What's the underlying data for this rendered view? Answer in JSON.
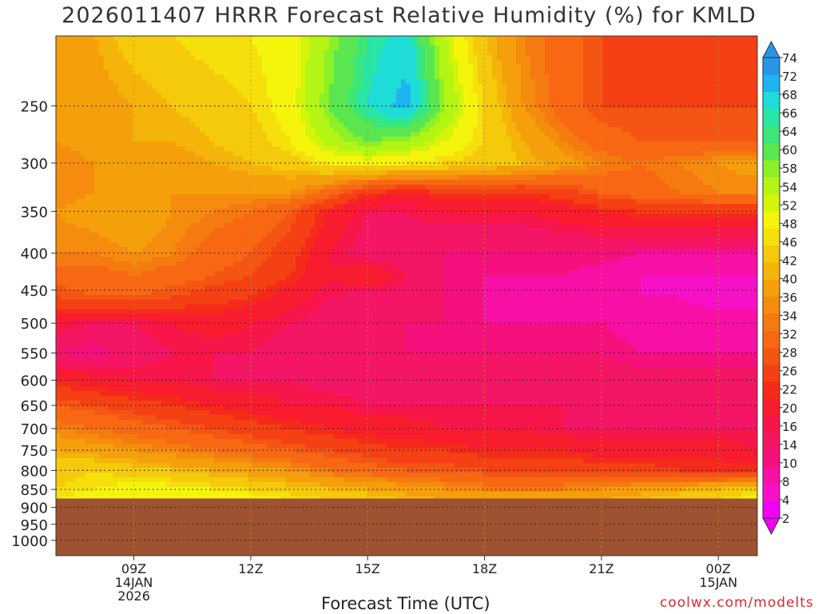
{
  "chart_data": {
    "type": "heatmap",
    "title": "2026011407 HRRR Forecast Relative Humidity (%) for KMLD",
    "xlabel": "Forecast Time (UTC)",
    "credit": "coolwx.com/modelts",
    "x_range_hours": [
      7,
      25
    ],
    "x_ticks": [
      {
        "hour": 9,
        "lines": [
          "09Z",
          "14JAN",
          "2026"
        ]
      },
      {
        "hour": 12,
        "lines": [
          "12Z"
        ]
      },
      {
        "hour": 15,
        "lines": [
          "15Z"
        ]
      },
      {
        "hour": 18,
        "lines": [
          "18Z"
        ]
      },
      {
        "hour": 21,
        "lines": [
          "21Z"
        ]
      },
      {
        "hour": 24,
        "lines": [
          "00Z",
          "15JAN"
        ]
      }
    ],
    "y_ticks_hpa": [
      250,
      300,
      350,
      400,
      450,
      500,
      550,
      600,
      650,
      700,
      750,
      800,
      850,
      900,
      950,
      1000
    ],
    "y_range_hpa": [
      1050,
      200
    ],
    "y_scale": "log",
    "ground_level_hpa": 875,
    "ground_color": "#9e5231",
    "colorbar_levels": [
      2,
      4,
      8,
      10,
      14,
      16,
      20,
      22,
      26,
      28,
      32,
      34,
      36,
      40,
      42,
      46,
      48,
      52,
      54,
      58,
      60,
      64,
      66,
      68,
      72,
      74
    ],
    "colorbar_colors": [
      "#f000f5",
      "#f810c8",
      "#f80fa5",
      "#f5107e",
      "#f51565",
      "#f8154a",
      "#f81c2e",
      "#f52a1a",
      "#f54014",
      "#f55513",
      "#f86813",
      "#f57a0f",
      "#f58c0d",
      "#f5a00a",
      "#f5b40a",
      "#f5ca0a",
      "#f5e00c",
      "#f5f50c",
      "#d4f50a",
      "#b4f514",
      "#8cf028",
      "#5ae650",
      "#3ce678",
      "#28e6a5",
      "#1edcd7",
      "#1eb4f0",
      "#2896e6"
    ],
    "series": [
      {
        "pressure": 200,
        "values": [
          38,
          40,
          44,
          46,
          48,
          48,
          50,
          58,
          66,
          70,
          54,
          42,
          34,
          30,
          26,
          26,
          26,
          26,
          26
        ]
      },
      {
        "pressure": 250,
        "values": [
          36,
          38,
          40,
          42,
          44,
          46,
          50,
          60,
          68,
          74,
          58,
          46,
          36,
          30,
          26,
          26,
          26,
          26,
          26
        ]
      },
      {
        "pressure": 280,
        "values": [
          36,
          38,
          40,
          40,
          42,
          44,
          48,
          56,
          60,
          58,
          52,
          46,
          40,
          34,
          30,
          28,
          28,
          28,
          28
        ]
      },
      {
        "pressure": 300,
        "values": [
          34,
          36,
          38,
          38,
          40,
          42,
          44,
          48,
          50,
          48,
          46,
          44,
          42,
          38,
          34,
          32,
          34,
          36,
          38
        ]
      },
      {
        "pressure": 330,
        "values": [
          34,
          36,
          38,
          36,
          36,
          36,
          36,
          30,
          22,
          20,
          22,
          22,
          22,
          24,
          28,
          30,
          32,
          34,
          34
        ]
      },
      {
        "pressure": 350,
        "values": [
          36,
          38,
          40,
          36,
          34,
          32,
          28,
          20,
          14,
          14,
          16,
          16,
          16,
          18,
          20,
          22,
          22,
          22,
          22
        ]
      },
      {
        "pressure": 400,
        "values": [
          34,
          34,
          36,
          34,
          30,
          28,
          24,
          16,
          12,
          12,
          10,
          10,
          10,
          10,
          10,
          8,
          8,
          8,
          8
        ]
      },
      {
        "pressure": 430,
        "values": [
          30,
          30,
          32,
          30,
          28,
          26,
          22,
          16,
          20,
          14,
          10,
          8,
          8,
          8,
          6,
          4,
          4,
          4,
          4
        ]
      },
      {
        "pressure": 460,
        "values": [
          26,
          28,
          28,
          26,
          24,
          22,
          18,
          14,
          12,
          12,
          10,
          8,
          8,
          6,
          6,
          4,
          4,
          2,
          2
        ]
      },
      {
        "pressure": 500,
        "values": [
          16,
          14,
          14,
          16,
          18,
          16,
          14,
          12,
          12,
          10,
          10,
          8,
          8,
          8,
          8,
          6,
          6,
          6,
          6
        ]
      },
      {
        "pressure": 550,
        "values": [
          10,
          8,
          12,
          14,
          14,
          14,
          12,
          12,
          12,
          10,
          10,
          10,
          10,
          10,
          10,
          8,
          8,
          8,
          8
        ]
      },
      {
        "pressure": 600,
        "values": [
          20,
          18,
          16,
          16,
          14,
          14,
          14,
          12,
          12,
          12,
          12,
          12,
          12,
          12,
          12,
          12,
          12,
          12,
          12
        ]
      },
      {
        "pressure": 650,
        "values": [
          28,
          26,
          24,
          22,
          20,
          18,
          16,
          16,
          14,
          14,
          14,
          14,
          14,
          14,
          14,
          14,
          14,
          14,
          14
        ]
      },
      {
        "pressure": 700,
        "values": [
          34,
          32,
          30,
          28,
          26,
          24,
          22,
          20,
          18,
          18,
          16,
          16,
          16,
          14,
          14,
          14,
          14,
          14,
          14
        ]
      },
      {
        "pressure": 750,
        "values": [
          40,
          38,
          36,
          34,
          32,
          30,
          28,
          26,
          24,
          22,
          22,
          20,
          20,
          20,
          18,
          18,
          18,
          18,
          16
        ]
      },
      {
        "pressure": 800,
        "values": [
          44,
          46,
          44,
          42,
          40,
          38,
          36,
          32,
          30,
          28,
          28,
          26,
          26,
          26,
          24,
          24,
          22,
          22,
          22
        ]
      },
      {
        "pressure": 850,
        "values": [
          46,
          48,
          50,
          50,
          48,
          46,
          44,
          42,
          40,
          38,
          36,
          34,
          34,
          34,
          36,
          38,
          40,
          42,
          44
        ]
      },
      {
        "pressure": 875,
        "values": [
          48,
          50,
          52,
          52,
          52,
          50,
          48,
          46,
          44,
          42,
          40,
          38,
          38,
          38,
          40,
          42,
          44,
          46,
          50
        ]
      }
    ]
  }
}
